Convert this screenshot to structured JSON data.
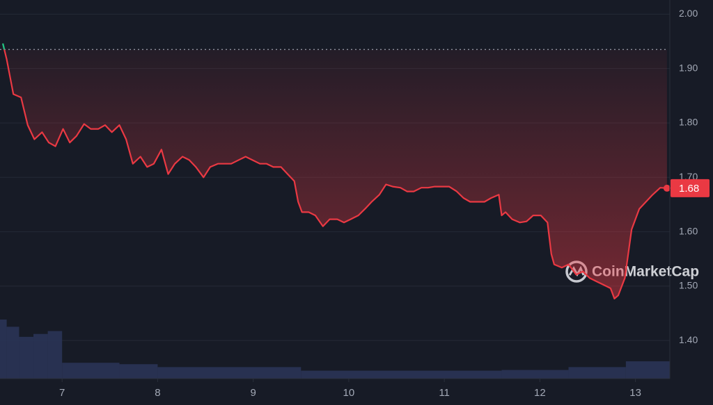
{
  "chart_data": {
    "type": "line",
    "watermark": "CoinMarketCap",
    "x": [
      6.38,
      6.42,
      6.49,
      6.57,
      6.64,
      6.71,
      6.79,
      6.86,
      6.93,
      7.01,
      7.08,
      7.15,
      7.23,
      7.3,
      7.38,
      7.45,
      7.52,
      7.6,
      7.67,
      7.74,
      7.82,
      7.89,
      7.96,
      8.04,
      8.11,
      8.18,
      8.26,
      8.33,
      8.4,
      8.48,
      8.55,
      8.63,
      8.7,
      8.77,
      8.85,
      8.92,
      8.99,
      9.07,
      9.14,
      9.21,
      9.29,
      9.36,
      9.43,
      9.47,
      9.51,
      9.58,
      9.65,
      9.73,
      9.8,
      9.88,
      9.95,
      10.02,
      10.1,
      10.17,
      10.24,
      10.32,
      10.39,
      10.46,
      10.54,
      10.61,
      10.68,
      10.76,
      10.83,
      10.9,
      10.98,
      11.05,
      11.13,
      11.2,
      11.27,
      11.35,
      11.42,
      11.49,
      11.57,
      11.6,
      11.64,
      11.71,
      11.79,
      11.86,
      11.93,
      12.01,
      12.08,
      12.12,
      12.15,
      12.23,
      12.3,
      12.38,
      12.45,
      12.52,
      12.6,
      12.67,
      12.74,
      12.78,
      12.82,
      12.89,
      12.96,
      13.04,
      13.11,
      13.18,
      13.26,
      13.33
    ],
    "series": [
      {
        "color": "#ea3943",
        "color_above_open": "#16c784",
        "values": [
          1.946,
          1.917,
          1.853,
          1.847,
          1.796,
          1.77,
          1.783,
          1.764,
          1.757,
          1.789,
          1.764,
          1.776,
          1.798,
          1.789,
          1.789,
          1.796,
          1.783,
          1.796,
          1.77,
          1.725,
          1.738,
          1.719,
          1.725,
          1.751,
          1.706,
          1.725,
          1.738,
          1.732,
          1.719,
          1.7,
          1.719,
          1.725,
          1.725,
          1.725,
          1.732,
          1.738,
          1.732,
          1.725,
          1.725,
          1.719,
          1.719,
          1.706,
          1.693,
          1.655,
          1.636,
          1.636,
          1.63,
          1.61,
          1.623,
          1.623,
          1.617,
          1.623,
          1.63,
          1.642,
          1.655,
          1.668,
          1.687,
          1.683,
          1.681,
          1.674,
          1.674,
          1.681,
          1.681,
          1.683,
          1.683,
          1.683,
          1.674,
          1.662,
          1.655,
          1.655,
          1.655,
          1.662,
          1.668,
          1.63,
          1.636,
          1.623,
          1.617,
          1.619,
          1.63,
          1.63,
          1.617,
          1.559,
          1.54,
          1.534,
          1.54,
          1.521,
          1.527,
          1.515,
          1.508,
          1.502,
          1.496,
          1.477,
          1.483,
          1.515,
          1.604,
          1.642,
          1.655,
          1.668,
          1.681,
          1.68
        ]
      }
    ],
    "open_price": 1.935,
    "last_price": 1.68,
    "volume": {
      "color": "#2a3456",
      "x": [
        6.35,
        6.42,
        6.55,
        6.7,
        6.85,
        7.0,
        7.6,
        8.0,
        9.5,
        11.6,
        12.3,
        12.9
      ],
      "values": [
        82,
        72,
        58,
        62,
        66,
        22,
        20,
        16,
        11,
        12,
        16,
        24
      ]
    },
    "xlim": [
      6.35,
      13.36
    ],
    "ylim": [
      1.33,
      2.026
    ],
    "xticks": [
      7,
      8,
      9,
      10,
      11,
      12,
      13
    ],
    "yticks": [
      {
        "value": 1.4,
        "label": "1.40"
      },
      {
        "value": 1.5,
        "label": "1.50"
      },
      {
        "value": 1.6,
        "label": "1.60"
      },
      {
        "value": 1.7,
        "label": "1.70"
      },
      {
        "value": 1.8,
        "label": "1.80"
      },
      {
        "value": 1.9,
        "label": "1.90"
      },
      {
        "value": 2.0,
        "label": "2.00"
      }
    ],
    "grid": true
  }
}
